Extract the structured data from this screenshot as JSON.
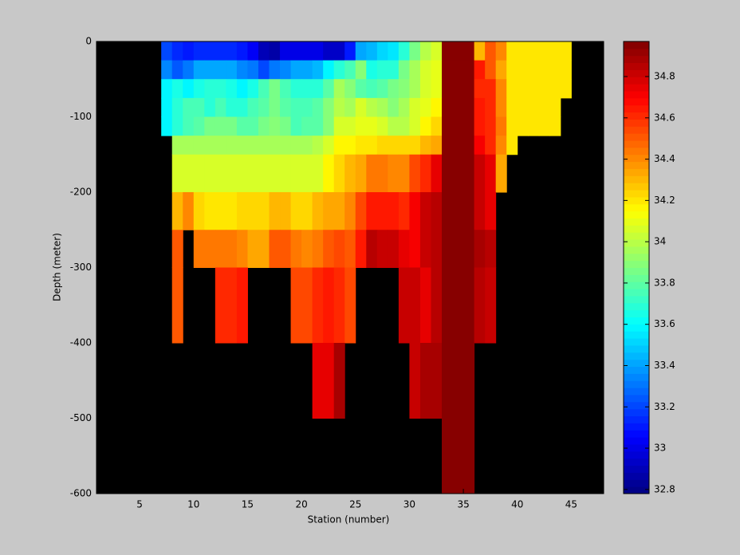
{
  "chart_data": {
    "type": "heatmap",
    "xlabel": "Station (number)",
    "ylabel": "Depth (meter)",
    "xlim": [
      1,
      48
    ],
    "ylim": [
      -600,
      0
    ],
    "xticks": [
      5,
      10,
      15,
      20,
      25,
      30,
      35,
      40,
      45
    ],
    "yticks": [
      0,
      -100,
      -200,
      -300,
      -400,
      -500,
      -600
    ],
    "x_edges": [
      7,
      8,
      9,
      10,
      11,
      12,
      13,
      14,
      15,
      16,
      17,
      18,
      19,
      20,
      21,
      22,
      23,
      24,
      25,
      26,
      27,
      28,
      29,
      30,
      31,
      32,
      33,
      34,
      35,
      36,
      37,
      38,
      39,
      40,
      41,
      42,
      43,
      44,
      45
    ],
    "y_edges": [
      0,
      -25,
      -50,
      -75,
      -100,
      -125,
      -150,
      -200,
      -250,
      -300,
      -400,
      -500,
      -600
    ],
    "z": [
      [
        33.2,
        33.15,
        33.1,
        33.15,
        33.15,
        33.15,
        33.15,
        33.1,
        33.05,
        32.9,
        32.85,
        33.0,
        33.0,
        33.0,
        33.0,
        32.95,
        32.95,
        33.1,
        33.4,
        33.45,
        33.5,
        33.55,
        33.7,
        33.85,
        34.0,
        34.05,
        34.95,
        34.95,
        34.95,
        34.3,
        34.5,
        34.4,
        34.2,
        34.2,
        34.2,
        34.2,
        34.2,
        34.2
      ],
      [
        33.35,
        33.25,
        33.3,
        33.4,
        33.4,
        33.4,
        33.4,
        33.35,
        33.3,
        33.2,
        33.3,
        33.35,
        33.4,
        33.4,
        33.45,
        33.6,
        33.7,
        33.75,
        33.9,
        33.65,
        33.7,
        33.7,
        33.85,
        33.95,
        34.05,
        34.1,
        34.95,
        34.95,
        34.95,
        34.65,
        34.5,
        34.35,
        34.2,
        34.2,
        34.2,
        34.2,
        34.2,
        34.2
      ],
      [
        33.6,
        33.65,
        33.6,
        33.65,
        33.7,
        33.7,
        33.65,
        33.6,
        33.65,
        33.75,
        33.85,
        33.75,
        33.7,
        33.7,
        33.7,
        33.8,
        33.95,
        33.9,
        33.8,
        33.75,
        33.8,
        33.85,
        33.9,
        33.95,
        34.05,
        34.1,
        34.95,
        34.95,
        34.95,
        34.6,
        34.6,
        34.4,
        34.2,
        34.2,
        34.2,
        34.2,
        34.2,
        34.2
      ],
      [
        33.6,
        33.7,
        33.75,
        33.75,
        33.7,
        33.75,
        33.7,
        33.7,
        33.75,
        33.8,
        33.85,
        33.8,
        33.75,
        33.75,
        33.8,
        33.9,
        34.0,
        33.95,
        34.05,
        34.0,
        33.95,
        33.9,
        33.95,
        34.05,
        34.1,
        34.15,
        34.95,
        34.95,
        34.95,
        34.65,
        34.6,
        34.4,
        34.2,
        34.2,
        34.2,
        34.2,
        34.2,
        null
      ],
      [
        33.6,
        33.7,
        33.75,
        33.8,
        33.85,
        33.85,
        33.85,
        33.8,
        33.8,
        33.85,
        33.9,
        33.85,
        33.75,
        33.8,
        33.8,
        33.9,
        34.05,
        34.05,
        34.1,
        34.1,
        34.05,
        34.0,
        34.0,
        34.05,
        34.15,
        34.25,
        34.95,
        34.95,
        34.95,
        34.65,
        34.6,
        34.45,
        34.2,
        34.2,
        34.2,
        34.2,
        34.2,
        null
      ],
      [
        null,
        33.95,
        33.95,
        33.95,
        33.95,
        33.95,
        33.95,
        33.95,
        33.95,
        33.95,
        33.95,
        33.95,
        33.95,
        33.95,
        34.0,
        34.05,
        34.15,
        34.15,
        34.2,
        34.2,
        34.25,
        34.25,
        34.25,
        34.25,
        34.3,
        34.35,
        34.95,
        34.95,
        34.95,
        34.7,
        34.6,
        34.4,
        34.2,
        null,
        null,
        null,
        null,
        null
      ],
      [
        null,
        34.05,
        34.05,
        34.05,
        34.05,
        34.05,
        34.05,
        34.05,
        34.05,
        34.05,
        34.05,
        34.05,
        34.05,
        34.05,
        34.05,
        34.15,
        34.25,
        34.3,
        34.35,
        34.45,
        34.45,
        34.4,
        34.4,
        34.55,
        34.6,
        34.75,
        34.95,
        34.95,
        34.95,
        34.8,
        34.75,
        34.35,
        null,
        null,
        null,
        null,
        null,
        null
      ],
      [
        null,
        34.3,
        34.4,
        34.25,
        34.2,
        34.2,
        34.2,
        34.25,
        34.25,
        34.25,
        34.3,
        34.3,
        34.25,
        34.25,
        34.3,
        34.35,
        34.35,
        34.4,
        34.55,
        34.65,
        34.65,
        34.65,
        34.6,
        34.7,
        34.8,
        34.85,
        34.95,
        34.95,
        34.95,
        34.8,
        34.75,
        null,
        null,
        null,
        null,
        null,
        null,
        null
      ],
      [
        null,
        34.5,
        null,
        34.45,
        34.45,
        34.45,
        34.45,
        34.4,
        34.35,
        34.35,
        34.5,
        34.5,
        34.45,
        34.4,
        34.45,
        34.5,
        34.55,
        34.5,
        34.65,
        34.85,
        34.8,
        34.8,
        34.75,
        34.7,
        34.8,
        34.85,
        34.95,
        34.95,
        34.95,
        34.9,
        34.85,
        null,
        null,
        null,
        null,
        null,
        null,
        null
      ],
      [
        null,
        34.5,
        null,
        null,
        null,
        34.6,
        34.6,
        34.65,
        null,
        null,
        null,
        null,
        34.55,
        34.55,
        34.6,
        34.65,
        34.6,
        34.55,
        null,
        null,
        null,
        null,
        34.8,
        34.8,
        34.75,
        34.85,
        34.95,
        34.95,
        34.95,
        34.85,
        34.8,
        null,
        null,
        null,
        null,
        null,
        null,
        null
      ],
      [
        null,
        null,
        null,
        null,
        null,
        null,
        null,
        null,
        null,
        null,
        null,
        null,
        null,
        null,
        34.75,
        34.75,
        34.9,
        null,
        null,
        null,
        null,
        null,
        null,
        34.8,
        34.9,
        34.9,
        34.95,
        34.95,
        34.95,
        null,
        null,
        null,
        null,
        null,
        null,
        null,
        null,
        null
      ],
      [
        null,
        null,
        null,
        null,
        null,
        null,
        null,
        null,
        null,
        null,
        null,
        null,
        null,
        null,
        null,
        null,
        null,
        null,
        null,
        null,
        null,
        null,
        null,
        null,
        null,
        null,
        34.95,
        34.95,
        34.95,
        null,
        null,
        null,
        null,
        null,
        null,
        null,
        null,
        null
      ]
    ],
    "colormap": "jet",
    "clim": [
      32.78,
      34.97
    ],
    "cticks": [
      32.8,
      33,
      33.2,
      33.4,
      33.6,
      33.8,
      34,
      34.2,
      34.4,
      34.6,
      34.8
    ],
    "nan_color": "#000000",
    "grid": false
  }
}
